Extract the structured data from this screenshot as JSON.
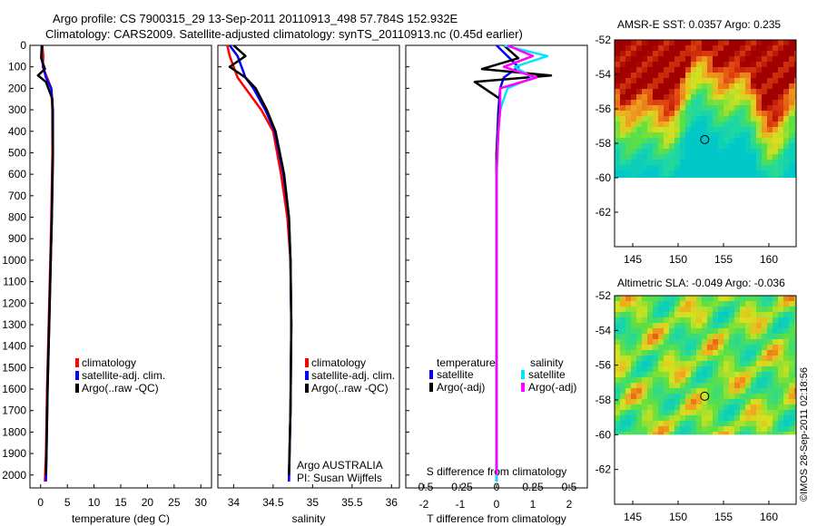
{
  "header": {
    "line1": "Argo profile: CS 7900315_29 13-Sep-2011 20110913_498 57.784S 152.932E",
    "line2": "Climatology: CARS2009. Satellite-adjusted climatology: synTS_20110913.nc (0.45d earlier)"
  },
  "footer": {
    "imos_stamp": "©IMOS 28-Sep-2011 02:18:56"
  },
  "colors": {
    "climatology": "#ff0000",
    "satellite": "#0000ff",
    "argo": "#000000",
    "sal_satellite": "#00e5ff",
    "sal_argo": "#ff00ff"
  },
  "chart_data": [
    {
      "type": "line",
      "id": "temperature",
      "xlabel": "temperature (deg C)",
      "xlim": [
        -2,
        32
      ],
      "xticks": [
        0,
        5,
        10,
        15,
        20,
        25,
        30
      ],
      "ylim": [
        0,
        2060
      ],
      "yticks": [
        0,
        100,
        200,
        300,
        400,
        500,
        600,
        700,
        800,
        900,
        1000,
        1100,
        1200,
        1300,
        1400,
        1500,
        1600,
        1700,
        1800,
        1900,
        2000
      ],
      "legend": [
        "climatology",
        "satellite-adj. clim.",
        "Argo(..raw -QC)"
      ],
      "series": [
        {
          "name": "climatology",
          "x": [
            0.3,
            0.5,
            0.4,
            1.2,
            2.0,
            2.2,
            2.2,
            2.0,
            1.8,
            1.5,
            1.2,
            1.0,
            0.8
          ],
          "y": [
            0,
            50,
            100,
            150,
            200,
            300,
            500,
            800,
            1000,
            1300,
            1600,
            1900,
            2030
          ]
        },
        {
          "name": "satellite-adj. clim.",
          "x": [
            0.2,
            0.1,
            0.5,
            1.0,
            2.0,
            2.3,
            2.3,
            2.1,
            1.9,
            1.6,
            1.3,
            1.1,
            1.0
          ],
          "y": [
            0,
            50,
            100,
            150,
            200,
            300,
            500,
            800,
            1000,
            1300,
            1600,
            1900,
            2030
          ]
        },
        {
          "name": "Argo(..raw -QC)",
          "x": [
            0.3,
            0.1,
            0.8,
            -0.5,
            1.0,
            2.2,
            2.3,
            2.1,
            1.9,
            1.6,
            1.3,
            1.1,
            1.0
          ],
          "y": [
            0,
            60,
            110,
            140,
            170,
            250,
            500,
            800,
            1000,
            1300,
            1600,
            1900,
            2000
          ]
        }
      ]
    },
    {
      "type": "line",
      "id": "salinity",
      "xlabel": "salinity",
      "xlim": [
        33.8,
        36.1
      ],
      "xticks": [
        34,
        34.5,
        35,
        35.5,
        36
      ],
      "ylim": [
        0,
        2060
      ],
      "legend": [
        "climatology",
        "satellite-adj. clim.",
        "Argo(..raw -QC)"
      ],
      "annotations": [
        "Argo AUSTRALIA",
        "PI: Susan Wijffels"
      ],
      "series": [
        {
          "name": "climatology",
          "x": [
            33.92,
            33.95,
            34.0,
            34.05,
            34.15,
            34.35,
            34.5,
            34.6,
            34.68,
            34.72,
            34.73,
            34.72,
            34.7
          ],
          "y": [
            0,
            50,
            100,
            150,
            200,
            300,
            400,
            600,
            800,
            1000,
            1300,
            1700,
            2030
          ]
        },
        {
          "name": "satellite-adj. clim.",
          "x": [
            33.95,
            34.05,
            34.1,
            34.15,
            34.25,
            34.4,
            34.52,
            34.63,
            34.7,
            34.72,
            34.73,
            34.72,
            34.7
          ],
          "y": [
            0,
            50,
            100,
            150,
            200,
            300,
            400,
            600,
            800,
            1000,
            1300,
            1700,
            2030
          ]
        },
        {
          "name": "Argo(..raw -QC)",
          "x": [
            34.0,
            34.15,
            33.95,
            34.15,
            34.28,
            34.42,
            34.53,
            34.64,
            34.7,
            34.72,
            34.73,
            34.72,
            34.7
          ],
          "y": [
            0,
            50,
            100,
            150,
            200,
            300,
            400,
            600,
            800,
            1000,
            1300,
            1700,
            2000
          ]
        }
      ]
    },
    {
      "type": "line",
      "id": "difference",
      "xlabel": "T difference from climatology",
      "xlabel_top": "S difference from climatology",
      "xlim": [
        -2.5,
        2.5
      ],
      "xticks": [
        -2,
        -1,
        0,
        1,
        2
      ],
      "sticks": [
        "-0.5",
        "-0.25",
        "0",
        "0.25",
        "0.5"
      ],
      "sticks_pos": [
        -2,
        -1,
        0,
        1,
        2
      ],
      "ylim": [
        0,
        2060
      ],
      "legend_groups": [
        {
          "title": "temperature",
          "items": [
            "satellite",
            "Argo(-adj)"
          ]
        },
        {
          "title": "salinity",
          "items": [
            "satellite",
            "Argo(-adj)"
          ]
        }
      ],
      "series": [
        {
          "name": "T satellite",
          "x": [
            0.0,
            0.3,
            0.6,
            0.2,
            0.1,
            0.05,
            0.0,
            0.0,
            0.0,
            0.0,
            0.0,
            0.0,
            0.0
          ],
          "y": [
            0,
            50,
            100,
            150,
            200,
            300,
            500,
            800,
            1000,
            1300,
            1600,
            1900,
            2030
          ]
        },
        {
          "name": "T Argo(-adj)",
          "x": [
            0.2,
            0.6,
            -0.4,
            1.5,
            -0.6,
            0.1,
            0.0,
            0.0,
            0.0,
            0.0,
            0.0,
            0.0,
            0.0
          ],
          "y": [
            0,
            60,
            110,
            140,
            170,
            250,
            500,
            800,
            1000,
            1300,
            1600,
            1900,
            2000
          ]
        },
        {
          "name": "S satellite",
          "x": [
            0.2,
            1.4,
            0.5,
            1.0,
            0.3,
            0.1,
            0.05,
            0.0,
            0.0,
            0.0,
            0.0,
            0.0,
            0.0
          ],
          "y": [
            0,
            50,
            100,
            150,
            200,
            300,
            400,
            600,
            800,
            1000,
            1300,
            1700,
            2030
          ]
        },
        {
          "name": "S Argo(-adj)",
          "x": [
            0.3,
            1.0,
            0.2,
            1.1,
            0.1,
            0.1,
            0.05,
            0.0,
            0.0,
            0.0,
            0.0,
            0.0,
            0.0
          ],
          "y": [
            0,
            50,
            100,
            150,
            200,
            300,
            400,
            600,
            800,
            1000,
            1300,
            1700,
            2000
          ]
        }
      ]
    }
  ],
  "maps": [
    {
      "id": "sst",
      "title": "AMSR-E SST: 0.0357 Argo: 0.235",
      "xticks": [
        145,
        150,
        155,
        160
      ],
      "yticks": [
        -52,
        -54,
        -56,
        -58,
        -60,
        -62
      ],
      "lon_range": [
        143,
        163
      ],
      "lat_range": [
        -52,
        -64
      ],
      "float_position": {
        "lon": 152.932,
        "lat": -57.784
      }
    },
    {
      "id": "sla",
      "title": "Altimetric SLA: -0.049 Argo: -0.036",
      "xticks": [
        145,
        150,
        155,
        160
      ],
      "yticks": [
        -52,
        -54,
        -56,
        -58,
        -60,
        -62
      ],
      "lon_range": [
        143,
        163
      ],
      "lat_range": [
        -52,
        -64
      ],
      "float_position": {
        "lon": 152.932,
        "lat": -57.784
      }
    }
  ]
}
